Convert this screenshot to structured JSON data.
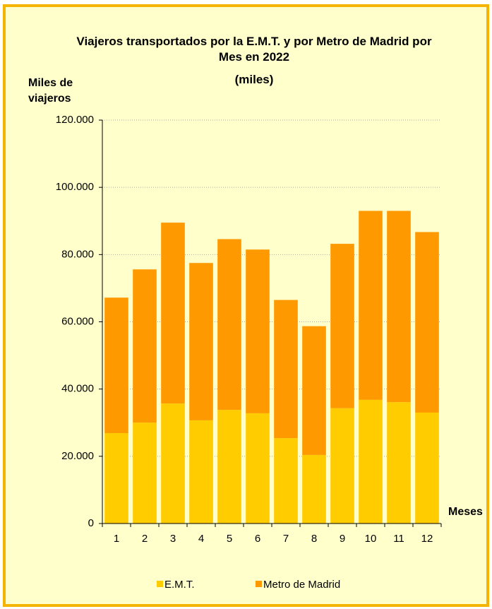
{
  "chart_data": {
    "type": "stacked_bar",
    "title": "Viajeros transportados por la E.M.T. y por Metro de Madrid por Mes en 2022",
    "subtitle": "(miles)",
    "y_label": "Miles de viajeros",
    "x_label": "Meses",
    "categories": [
      "1",
      "2",
      "3",
      "4",
      "5",
      "6",
      "7",
      "8",
      "9",
      "10",
      "11",
      "12"
    ],
    "series": [
      {
        "name": "E.M.T.",
        "color": "#ffcc00",
        "values": [
          26900,
          30000,
          35700,
          30700,
          33800,
          32800,
          25400,
          20400,
          34300,
          36800,
          36100,
          33000
        ]
      },
      {
        "name": "Metro de Madrid",
        "color": "#ff9900",
        "values": [
          40300,
          45600,
          53800,
          46800,
          50800,
          48700,
          41100,
          38300,
          48900,
          56200,
          56900,
          53700
        ]
      }
    ],
    "ylim": [
      0,
      120000
    ],
    "yticks": [
      0,
      {
        "value": 20000,
        "label": "20.000"
      },
      {
        "value": 40000,
        "label": "40.000"
      },
      {
        "value": 60000,
        "label": "60.000"
      },
      {
        "value": 80000,
        "label": "80.000"
      },
      {
        "value": 100000,
        "label": "100.000"
      },
      {
        "value": 120000,
        "label": "120.000"
      }
    ],
    "grid": true
  }
}
